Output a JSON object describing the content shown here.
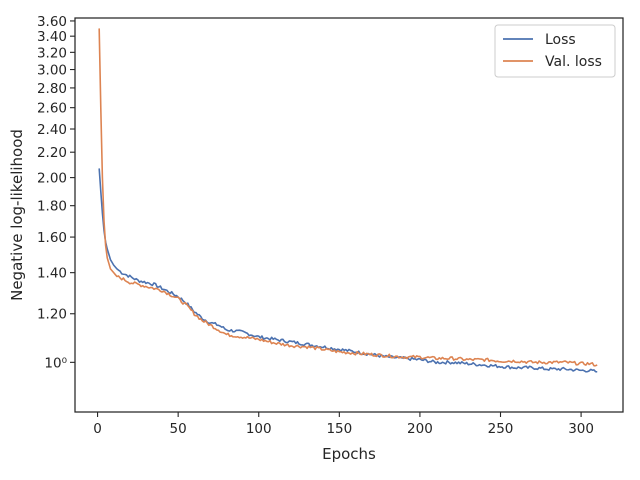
{
  "chart_data": {
    "type": "line",
    "title": "",
    "xlabel": "Epochs",
    "ylabel": "Negative log-likelihood",
    "xlim": [
      -14,
      326
    ],
    "ylim": [
      0.83,
      3.64
    ],
    "yscale": "log",
    "grid": false,
    "legend_position": "top-right",
    "xticks": [
      0,
      50,
      100,
      150,
      200,
      250,
      300
    ],
    "xtick_labels": [
      "0",
      "50",
      "100",
      "150",
      "200",
      "250",
      "300"
    ],
    "yticks": [
      1.0,
      1.2,
      1.4,
      1.6,
      1.8,
      2.0,
      2.2,
      2.4,
      2.6,
      2.8,
      3.0,
      3.2,
      3.4,
      3.6
    ],
    "ytick_labels": [
      "10⁰",
      "1.20",
      "1.40",
      "1.60",
      "1.80",
      "2.00",
      "2.20",
      "2.40",
      "2.60",
      "2.80",
      "3.00",
      "3.20",
      "3.40",
      "3.60"
    ],
    "series": [
      {
        "name": "Loss",
        "color": "#4c72b0",
        "x": [
          1,
          2,
          3,
          4,
          5,
          6,
          7,
          8,
          10,
          12,
          15,
          20,
          25,
          30,
          35,
          40,
          45,
          50,
          55,
          60,
          65,
          70,
          75,
          80,
          90,
          100,
          110,
          120,
          130,
          140,
          150,
          160,
          170,
          180,
          190,
          200,
          210,
          220,
          230,
          240,
          250,
          260,
          270,
          280,
          290,
          300,
          305,
          310
        ],
        "y": [
          2.07,
          1.9,
          1.75,
          1.64,
          1.57,
          1.53,
          1.5,
          1.47,
          1.44,
          1.42,
          1.4,
          1.38,
          1.36,
          1.35,
          1.34,
          1.32,
          1.3,
          1.28,
          1.25,
          1.21,
          1.18,
          1.16,
          1.15,
          1.13,
          1.12,
          1.1,
          1.09,
          1.08,
          1.07,
          1.06,
          1.05,
          1.04,
          1.03,
          1.02,
          1.015,
          1.01,
          1.0,
          1.0,
          0.995,
          0.99,
          0.985,
          0.98,
          0.98,
          0.975,
          0.975,
          0.97,
          0.97,
          0.965
        ]
      },
      {
        "name": "Val. loss",
        "color": "#dd8452",
        "x": [
          1,
          2,
          3,
          4,
          5,
          6,
          7,
          8,
          10,
          12,
          15,
          20,
          25,
          30,
          35,
          40,
          45,
          50,
          55,
          60,
          65,
          70,
          75,
          80,
          90,
          100,
          110,
          120,
          130,
          140,
          150,
          160,
          170,
          180,
          190,
          200,
          210,
          220,
          230,
          240,
          250,
          260,
          270,
          280,
          290,
          300,
          305,
          310
        ],
        "y": [
          3.5,
          2.6,
          2.0,
          1.7,
          1.55,
          1.48,
          1.45,
          1.42,
          1.4,
          1.38,
          1.37,
          1.35,
          1.34,
          1.33,
          1.32,
          1.31,
          1.29,
          1.27,
          1.24,
          1.2,
          1.17,
          1.15,
          1.13,
          1.11,
          1.1,
          1.09,
          1.075,
          1.065,
          1.06,
          1.05,
          1.04,
          1.035,
          1.03,
          1.025,
          1.02,
          1.02,
          1.015,
          1.015,
          1.01,
          1.01,
          1.005,
          1.005,
          1.0,
          1.0,
          1.0,
          0.995,
          0.995,
          0.99
        ]
      }
    ]
  }
}
